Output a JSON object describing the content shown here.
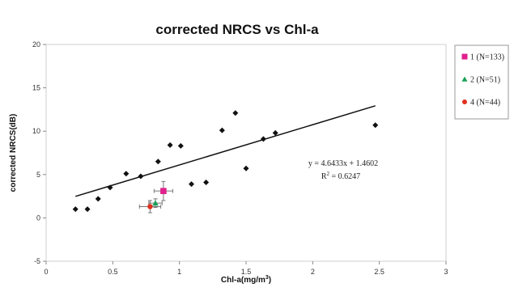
{
  "chart_data": {
    "type": "scatter",
    "title": "corrected NRCS vs Chl-a",
    "xlabel_main": "Chl-a(mg/m",
    "xlabel_sup": "3",
    "xlabel_close": ")",
    "ylabel": "corrected NRCS(dB)",
    "xlim": [
      0,
      3
    ],
    "ylim": [
      -5,
      20
    ],
    "x_ticks": [
      0,
      0.5,
      1,
      1.5,
      2,
      2.5,
      3
    ],
    "x_tick_labels": [
      "0",
      "0.5",
      "1",
      "1.5",
      "2",
      "2.5",
      "3"
    ],
    "y_ticks": [
      -5,
      0,
      5,
      10,
      15,
      20
    ],
    "y_tick_labels": [
      "-5",
      "0",
      "5",
      "10",
      "15",
      "20"
    ],
    "grid": false,
    "points": [
      {
        "x": 0.22,
        "y": 1.0
      },
      {
        "x": 0.31,
        "y": 1.0
      },
      {
        "x": 0.39,
        "y": 2.2
      },
      {
        "x": 0.48,
        "y": 3.5
      },
      {
        "x": 0.6,
        "y": 5.1
      },
      {
        "x": 0.71,
        "y": 4.8
      },
      {
        "x": 0.84,
        "y": 6.5
      },
      {
        "x": 0.93,
        "y": 8.4
      },
      {
        "x": 1.01,
        "y": 8.3
      },
      {
        "x": 1.09,
        "y": 3.9
      },
      {
        "x": 1.2,
        "y": 4.1
      },
      {
        "x": 1.32,
        "y": 10.1
      },
      {
        "x": 1.42,
        "y": 12.1
      },
      {
        "x": 1.5,
        "y": 5.7
      },
      {
        "x": 1.63,
        "y": 9.1
      },
      {
        "x": 1.72,
        "y": 9.8
      },
      {
        "x": 2.47,
        "y": 10.7
      }
    ],
    "trendline": {
      "slope": 4.6433,
      "intercept": 1.4602,
      "x_range": [
        0.22,
        2.47
      ],
      "equation": "y = 4.6433x + 1.4602",
      "r2_prefix": "R",
      "r2_sup": "2",
      "r2_value": " = 0.6247"
    },
    "series": [
      {
        "name": "1 (N=133)",
        "x": 0.88,
        "y": 3.1,
        "x_err": 0.07,
        "y_err": 1.1,
        "color": "#e0208c",
        "marker": "square"
      },
      {
        "name": "2 (N=51)",
        "x": 0.82,
        "y": 1.7,
        "x_err": 0.05,
        "y_err": 0.5,
        "color": "#1aa05a",
        "marker": "triangle"
      },
      {
        "name": "4 (N=44)",
        "x": 0.78,
        "y": 1.3,
        "x_err": 0.08,
        "y_err": 0.7,
        "color": "#e0301e",
        "marker": "circle"
      }
    ],
    "legend_position": "right"
  }
}
